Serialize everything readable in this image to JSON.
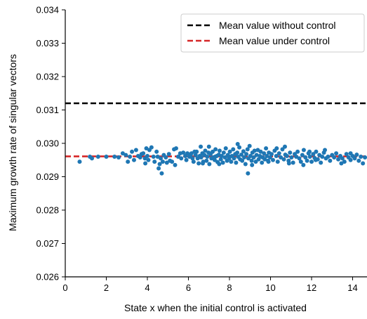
{
  "chart_data": {
    "type": "scatter",
    "xlabel": "State x when the initial control is activated",
    "ylabel": "Maximum growth rate of singular vectors",
    "xlim": [
      0,
      14.7
    ],
    "ylim": [
      0.026,
      0.034
    ],
    "xticks": [
      0,
      2,
      4,
      6,
      8,
      10,
      12,
      14
    ],
    "yticks": [
      0.026,
      0.027,
      0.028,
      0.029,
      0.03,
      0.031,
      0.032,
      0.033,
      0.034
    ],
    "xtick_labels": [
      "0",
      "2",
      "4",
      "6",
      "8",
      "10",
      "12",
      "14"
    ],
    "ytick_labels": [
      "0.026",
      "0.027",
      "0.028",
      "0.029",
      "0.030",
      "0.031",
      "0.032",
      "0.033",
      "0.034"
    ],
    "grid": false,
    "legend_position": "top-right",
    "lines": [
      {
        "name": "Mean value without control",
        "y": 0.0312,
        "color": "#000000",
        "style": "dashed"
      },
      {
        "name": "Mean value under control",
        "y": 0.02961,
        "color": "#d62728",
        "style": "dashed"
      }
    ],
    "scatter_color": "#1f77b4",
    "scatter_points": [
      [
        0.7,
        0.02945
      ],
      [
        1.2,
        0.0296
      ],
      [
        1.3,
        0.02955
      ],
      [
        1.6,
        0.0296
      ],
      [
        2.0,
        0.0296
      ],
      [
        2.4,
        0.0296
      ],
      [
        2.6,
        0.02958
      ],
      [
        2.8,
        0.0297
      ],
      [
        2.95,
        0.02965
      ],
      [
        3.05,
        0.02945
      ],
      [
        3.15,
        0.0296
      ],
      [
        3.25,
        0.02975
      ],
      [
        3.35,
        0.0295
      ],
      [
        3.45,
        0.0298
      ],
      [
        3.55,
        0.02962
      ],
      [
        3.65,
        0.02958
      ],
      [
        3.72,
        0.02968
      ],
      [
        3.8,
        0.0297
      ],
      [
        3.88,
        0.02955
      ],
      [
        3.95,
        0.02985
      ],
      [
        4.0,
        0.02962
      ],
      [
        4.05,
        0.0295
      ],
      [
        4.1,
        0.0298
      ],
      [
        4.2,
        0.02988
      ],
      [
        4.3,
        0.0296
      ],
      [
        4.35,
        0.02945
      ],
      [
        4.45,
        0.02975
      ],
      [
        4.5,
        0.0296
      ],
      [
        4.55,
        0.02925
      ],
      [
        4.6,
        0.02938
      ],
      [
        4.65,
        0.02955
      ],
      [
        4.7,
        0.0291
      ],
      [
        4.75,
        0.02945
      ],
      [
        4.8,
        0.02965
      ],
      [
        4.9,
        0.02958
      ],
      [
        4.95,
        0.02942
      ],
      [
        5.05,
        0.02968
      ],
      [
        5.1,
        0.02948
      ],
      [
        5.2,
        0.02945
      ],
      [
        5.3,
        0.02982
      ],
      [
        5.4,
        0.02985
      ],
      [
        5.5,
        0.0296
      ],
      [
        5.6,
        0.0297
      ],
      [
        5.65,
        0.02955
      ],
      [
        5.75,
        0.02972
      ],
      [
        5.85,
        0.02962
      ],
      [
        5.9,
        0.0295
      ],
      [
        5.95,
        0.0297
      ],
      [
        6.05,
        0.0296
      ],
      [
        6.1,
        0.02965
      ],
      [
        6.15,
        0.0297
      ],
      [
        6.2,
        0.02955
      ],
      [
        6.25,
        0.02945
      ],
      [
        6.35,
        0.02965
      ],
      [
        6.4,
        0.02975
      ],
      [
        6.45,
        0.02955
      ],
      [
        6.5,
        0.0294
      ],
      [
        6.55,
        0.02962
      ],
      [
        6.6,
        0.0299
      ],
      [
        6.62,
        0.02958
      ],
      [
        6.68,
        0.0297
      ],
      [
        6.72,
        0.02945
      ],
      [
        6.78,
        0.02965
      ],
      [
        6.82,
        0.02978
      ],
      [
        6.88,
        0.02948
      ],
      [
        6.92,
        0.0296
      ],
      [
        6.98,
        0.02972
      ],
      [
        7.02,
        0.02938
      ],
      [
        7.08,
        0.02968
      ],
      [
        7.12,
        0.02955
      ],
      [
        7.18,
        0.02975
      ],
      [
        7.22,
        0.02958
      ],
      [
        7.28,
        0.0295
      ],
      [
        7.32,
        0.02982
      ],
      [
        7.38,
        0.02962
      ],
      [
        7.42,
        0.02944
      ],
      [
        7.48,
        0.02966
      ],
      [
        7.52,
        0.02978
      ],
      [
        7.58,
        0.02952
      ],
      [
        7.62,
        0.02962
      ],
      [
        7.68,
        0.02942
      ],
      [
        7.72,
        0.02972
      ],
      [
        7.78,
        0.02958
      ],
      [
        7.82,
        0.02985
      ],
      [
        7.88,
        0.02948
      ],
      [
        7.92,
        0.02965
      ],
      [
        7.98,
        0.02955
      ],
      [
        8.02,
        0.02975
      ],
      [
        8.08,
        0.02945
      ],
      [
        8.12,
        0.02962
      ],
      [
        8.18,
        0.02982
      ],
      [
        8.22,
        0.02955
      ],
      [
        8.28,
        0.02968
      ],
      [
        8.32,
        0.02942
      ],
      [
        8.38,
        0.02972
      ],
      [
        8.42,
        0.0296
      ],
      [
        8.48,
        0.02988
      ],
      [
        8.52,
        0.02952
      ],
      [
        8.58,
        0.02966
      ],
      [
        8.62,
        0.02948
      ],
      [
        8.68,
        0.02976
      ],
      [
        8.72,
        0.02958
      ],
      [
        8.78,
        0.02938
      ],
      [
        8.82,
        0.02968
      ],
      [
        8.88,
        0.02982
      ],
      [
        8.92,
        0.02955
      ],
      [
        8.98,
        0.02992
      ],
      [
        9.02,
        0.02962
      ],
      [
        9.08,
        0.02948
      ],
      [
        9.12,
        0.02972
      ],
      [
        9.18,
        0.02958
      ],
      [
        9.22,
        0.02978
      ],
      [
        9.28,
        0.02945
      ],
      [
        9.32,
        0.02965
      ],
      [
        9.38,
        0.0298
      ],
      [
        9.42,
        0.02952
      ],
      [
        9.48,
        0.02962
      ],
      [
        9.52,
        0.02975
      ],
      [
        9.58,
        0.02942
      ],
      [
        9.62,
        0.02958
      ],
      [
        9.68,
        0.0297
      ],
      [
        9.72,
        0.02952
      ],
      [
        9.78,
        0.02985
      ],
      [
        9.82,
        0.02962
      ],
      [
        9.88,
        0.02948
      ],
      [
        9.92,
        0.02972
      ],
      [
        9.98,
        0.02958
      ],
      [
        10.05,
        0.02968
      ],
      [
        10.12,
        0.0295
      ],
      [
        10.2,
        0.02978
      ],
      [
        10.28,
        0.02962
      ],
      [
        10.35,
        0.02945
      ],
      [
        10.42,
        0.0297
      ],
      [
        10.5,
        0.02958
      ],
      [
        10.58,
        0.02982
      ],
      [
        10.65,
        0.02952
      ],
      [
        10.72,
        0.02966
      ],
      [
        10.8,
        0.02962
      ],
      [
        10.88,
        0.02948
      ],
      [
        10.95,
        0.02972
      ],
      [
        11.02,
        0.02958
      ],
      [
        11.1,
        0.02942
      ],
      [
        11.18,
        0.02968
      ],
      [
        11.25,
        0.0296
      ],
      [
        11.32,
        0.02975
      ],
      [
        11.4,
        0.02955
      ],
      [
        11.48,
        0.02945
      ],
      [
        11.55,
        0.02965
      ],
      [
        11.62,
        0.0298
      ],
      [
        11.7,
        0.02958
      ],
      [
        11.78,
        0.02948
      ],
      [
        11.85,
        0.0297
      ],
      [
        11.92,
        0.0296
      ],
      [
        12.0,
        0.02945
      ],
      [
        12.08,
        0.02968
      ],
      [
        12.15,
        0.02956
      ],
      [
        12.22,
        0.02975
      ],
      [
        12.3,
        0.02952
      ],
      [
        12.38,
        0.02965
      ],
      [
        12.45,
        0.02942
      ],
      [
        12.52,
        0.0296
      ],
      [
        12.6,
        0.02972
      ],
      [
        12.7,
        0.02955
      ],
      [
        12.8,
        0.0296
      ],
      [
        12.9,
        0.02948
      ],
      [
        13.0,
        0.02965
      ],
      [
        13.1,
        0.02958
      ],
      [
        13.2,
        0.0297
      ],
      [
        13.3,
        0.02952
      ],
      [
        13.4,
        0.02962
      ],
      [
        13.5,
        0.02955
      ],
      [
        13.6,
        0.02945
      ],
      [
        13.7,
        0.02968
      ],
      [
        13.8,
        0.02958
      ],
      [
        13.9,
        0.0295
      ],
      [
        14.0,
        0.02962
      ],
      [
        14.1,
        0.02955
      ],
      [
        14.2,
        0.02966
      ],
      [
        14.3,
        0.02948
      ],
      [
        14.4,
        0.0296
      ],
      [
        14.5,
        0.0294
      ],
      [
        14.6,
        0.02958
      ],
      [
        5.35,
        0.02935
      ],
      [
        6.3,
        0.02975
      ],
      [
        7.5,
        0.02938
      ],
      [
        8.4,
        0.02998
      ],
      [
        9.1,
        0.02935
      ],
      [
        10.3,
        0.02985
      ],
      [
        11.6,
        0.02935
      ],
      [
        12.65,
        0.0298
      ],
      [
        13.45,
        0.0294
      ],
      [
        8.9,
        0.0291
      ],
      [
        10.7,
        0.0299
      ],
      [
        7.0,
        0.0299
      ],
      [
        9.5,
        0.0296
      ],
      [
        12.2,
        0.0295
      ],
      [
        3.9,
        0.0294
      ],
      [
        6.7,
        0.0294
      ],
      [
        11.9,
        0.02975
      ],
      [
        10.9,
        0.0294
      ],
      [
        13.9,
        0.0297
      ],
      [
        8.0,
        0.0296
      ],
      [
        7.3,
        0.0296
      ],
      [
        9.9,
        0.02945
      ]
    ]
  }
}
